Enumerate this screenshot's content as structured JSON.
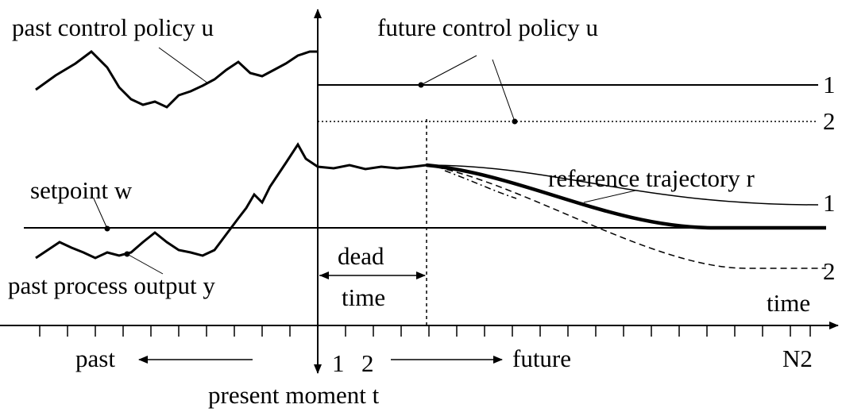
{
  "labels": {
    "past_control": "past control policy u",
    "future_control": "future control policy u",
    "reference": "reference trajectory r",
    "setpoint": "setpoint w",
    "past_output": "past process output y",
    "dead_time": [
      "dead",
      "time"
    ],
    "time_axis": "time",
    "past": "past",
    "future": "future",
    "horizon_end": "N2",
    "present": "present moment t"
  },
  "control_options": [
    "1",
    "2"
  ],
  "output_options": [
    "1",
    "2"
  ],
  "steps": [
    "1",
    "2"
  ]
}
